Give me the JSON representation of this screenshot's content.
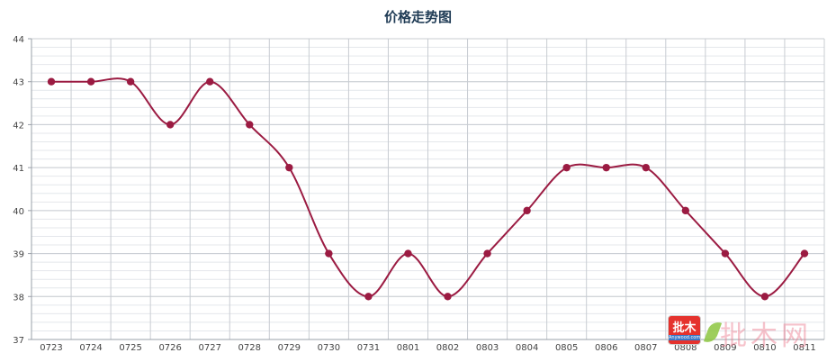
{
  "chart_data": {
    "type": "line",
    "title": "价格走势图",
    "xlabel": "",
    "ylabel": "",
    "categories": [
      "0723",
      "0724",
      "0725",
      "0726",
      "0727",
      "0728",
      "0729",
      "0730",
      "0731",
      "0801",
      "0802",
      "0803",
      "0804",
      "0805",
      "0806",
      "0807",
      "0808",
      "0809",
      "0810",
      "0811"
    ],
    "series": [
      {
        "values": [
          43,
          43,
          43,
          42,
          43,
          42,
          41,
          39,
          38,
          39,
          38,
          39,
          40,
          41,
          41,
          41,
          40,
          39,
          38,
          39
        ]
      }
    ],
    "ylim": [
      37,
      44
    ],
    "yticks": [
      37,
      38,
      39,
      40,
      41,
      42,
      43,
      44
    ],
    "grid": true,
    "minor_grid_step": 0.2,
    "line_color": "#9b1b42",
    "grid_color": "#c8ccd2",
    "minor_grid_color": "#e4e7eb"
  },
  "watermark": {
    "badge_text": "批木",
    "badge_subtext": "Anywood.com",
    "name": "批木网",
    "badge_color": "#e5322d"
  }
}
